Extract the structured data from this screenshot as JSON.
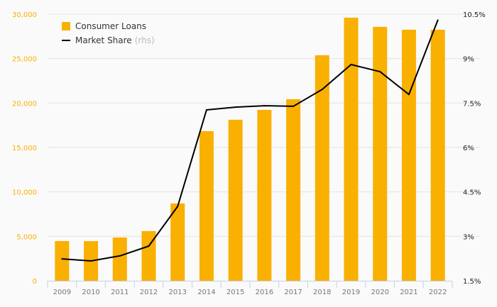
{
  "chart_data": {
    "type": "bar+line",
    "categories": [
      "2009",
      "2010",
      "2011",
      "2012",
      "2013",
      "2014",
      "2015",
      "2016",
      "2017",
      "2018",
      "2019",
      "2020",
      "2021",
      "2022"
    ],
    "series": [
      {
        "name": "Consumer Loans",
        "type": "bar",
        "axis": "left",
        "color": "#f9b000",
        "values": [
          4470,
          4460,
          4870,
          5590,
          8700,
          16840,
          18120,
          19230,
          20430,
          25380,
          29610,
          28570,
          28250,
          28250
        ]
      },
      {
        "name": "Market Share",
        "suffix": "(rhs)",
        "type": "line",
        "axis": "right",
        "color": "#000000",
        "values": [
          2.24,
          2.17,
          2.34,
          2.67,
          4.01,
          7.27,
          7.36,
          7.41,
          7.39,
          7.96,
          8.8,
          8.56,
          7.79,
          10.3
        ]
      }
    ],
    "left_axis": {
      "range": [
        0,
        30000
      ],
      "ticks": [
        "0",
        "5,000",
        "10,000",
        "15,000",
        "20,000",
        "25,000",
        "30,000"
      ],
      "color": "#f9b000"
    },
    "right_axis": {
      "range": [
        1.5,
        10.5
      ],
      "ticks": [
        "1.5%",
        "3%",
        "4.5%",
        "6%",
        "7.5%",
        "9%",
        "10.5%"
      ],
      "color": "#222222"
    },
    "grid": true,
    "legend_position": "top-left"
  }
}
